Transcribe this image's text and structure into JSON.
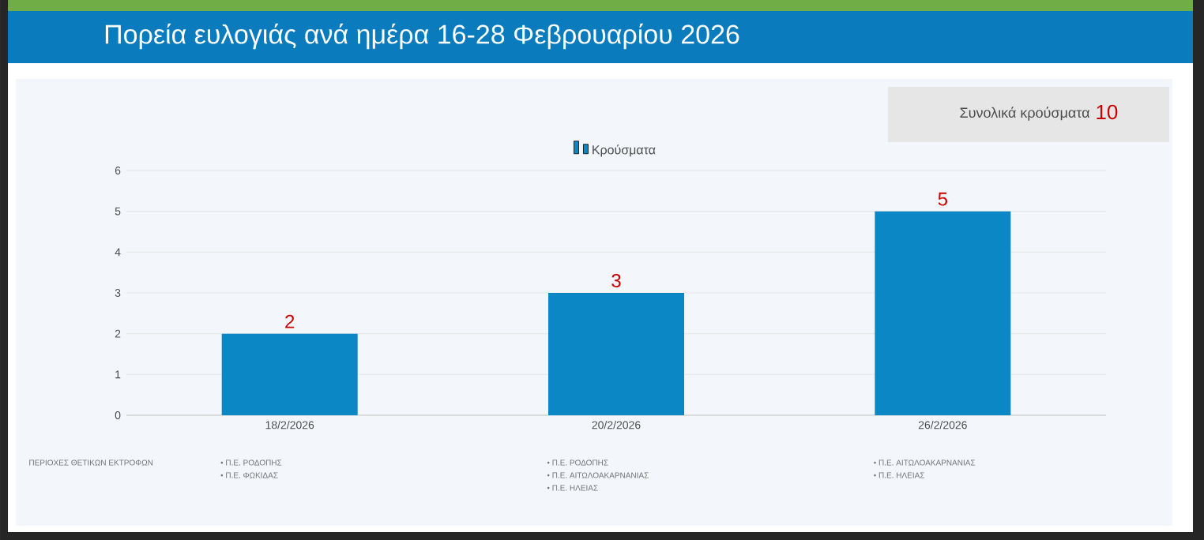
{
  "chart_data": {
    "type": "bar",
    "title": "Πορεία ευλογιάς ανά ημέρα 16-28 Φεβρουαρίου 2026",
    "categories": [
      "18/2/2026",
      "20/2/2026",
      "26/2/2026"
    ],
    "series": [
      {
        "name": "Κρούσματα",
        "color": "#0a87c4",
        "values": [
          2,
          3,
          5
        ]
      }
    ],
    "ylim": [
      0,
      6
    ],
    "yticks": [
      0,
      1,
      2,
      3,
      4,
      5,
      6
    ],
    "grid": "y",
    "legend": "top",
    "data_labels": true,
    "annotations": [
      "Συνολικά κρούσματα",
      "10",
      "ΠΕΡΙΟΧΕΣ ΘΕΤΙΚΩΝ ΕΚΤΡΟΦΩΝ",
      "• Π.Ε. ΡΟΔΟΠΗΣ",
      "• Π.Ε. ΦΩΚΙΔΑΣ",
      "• Π.Ε. ΡΟΔΟΠΗΣ",
      "• Π.Ε. ΑΙΤΩΛΟΑΚΑΡΝΑΝΙΑΣ",
      "• Π.Ε. ΗΛΕΙΑΣ",
      "• Π.Ε. ΑΙΤΩΛΟΑΚΑΡΝΑΝΙΑΣ",
      "• Π.Ε. ΗΛΕΙΑΣ"
    ]
  }
}
